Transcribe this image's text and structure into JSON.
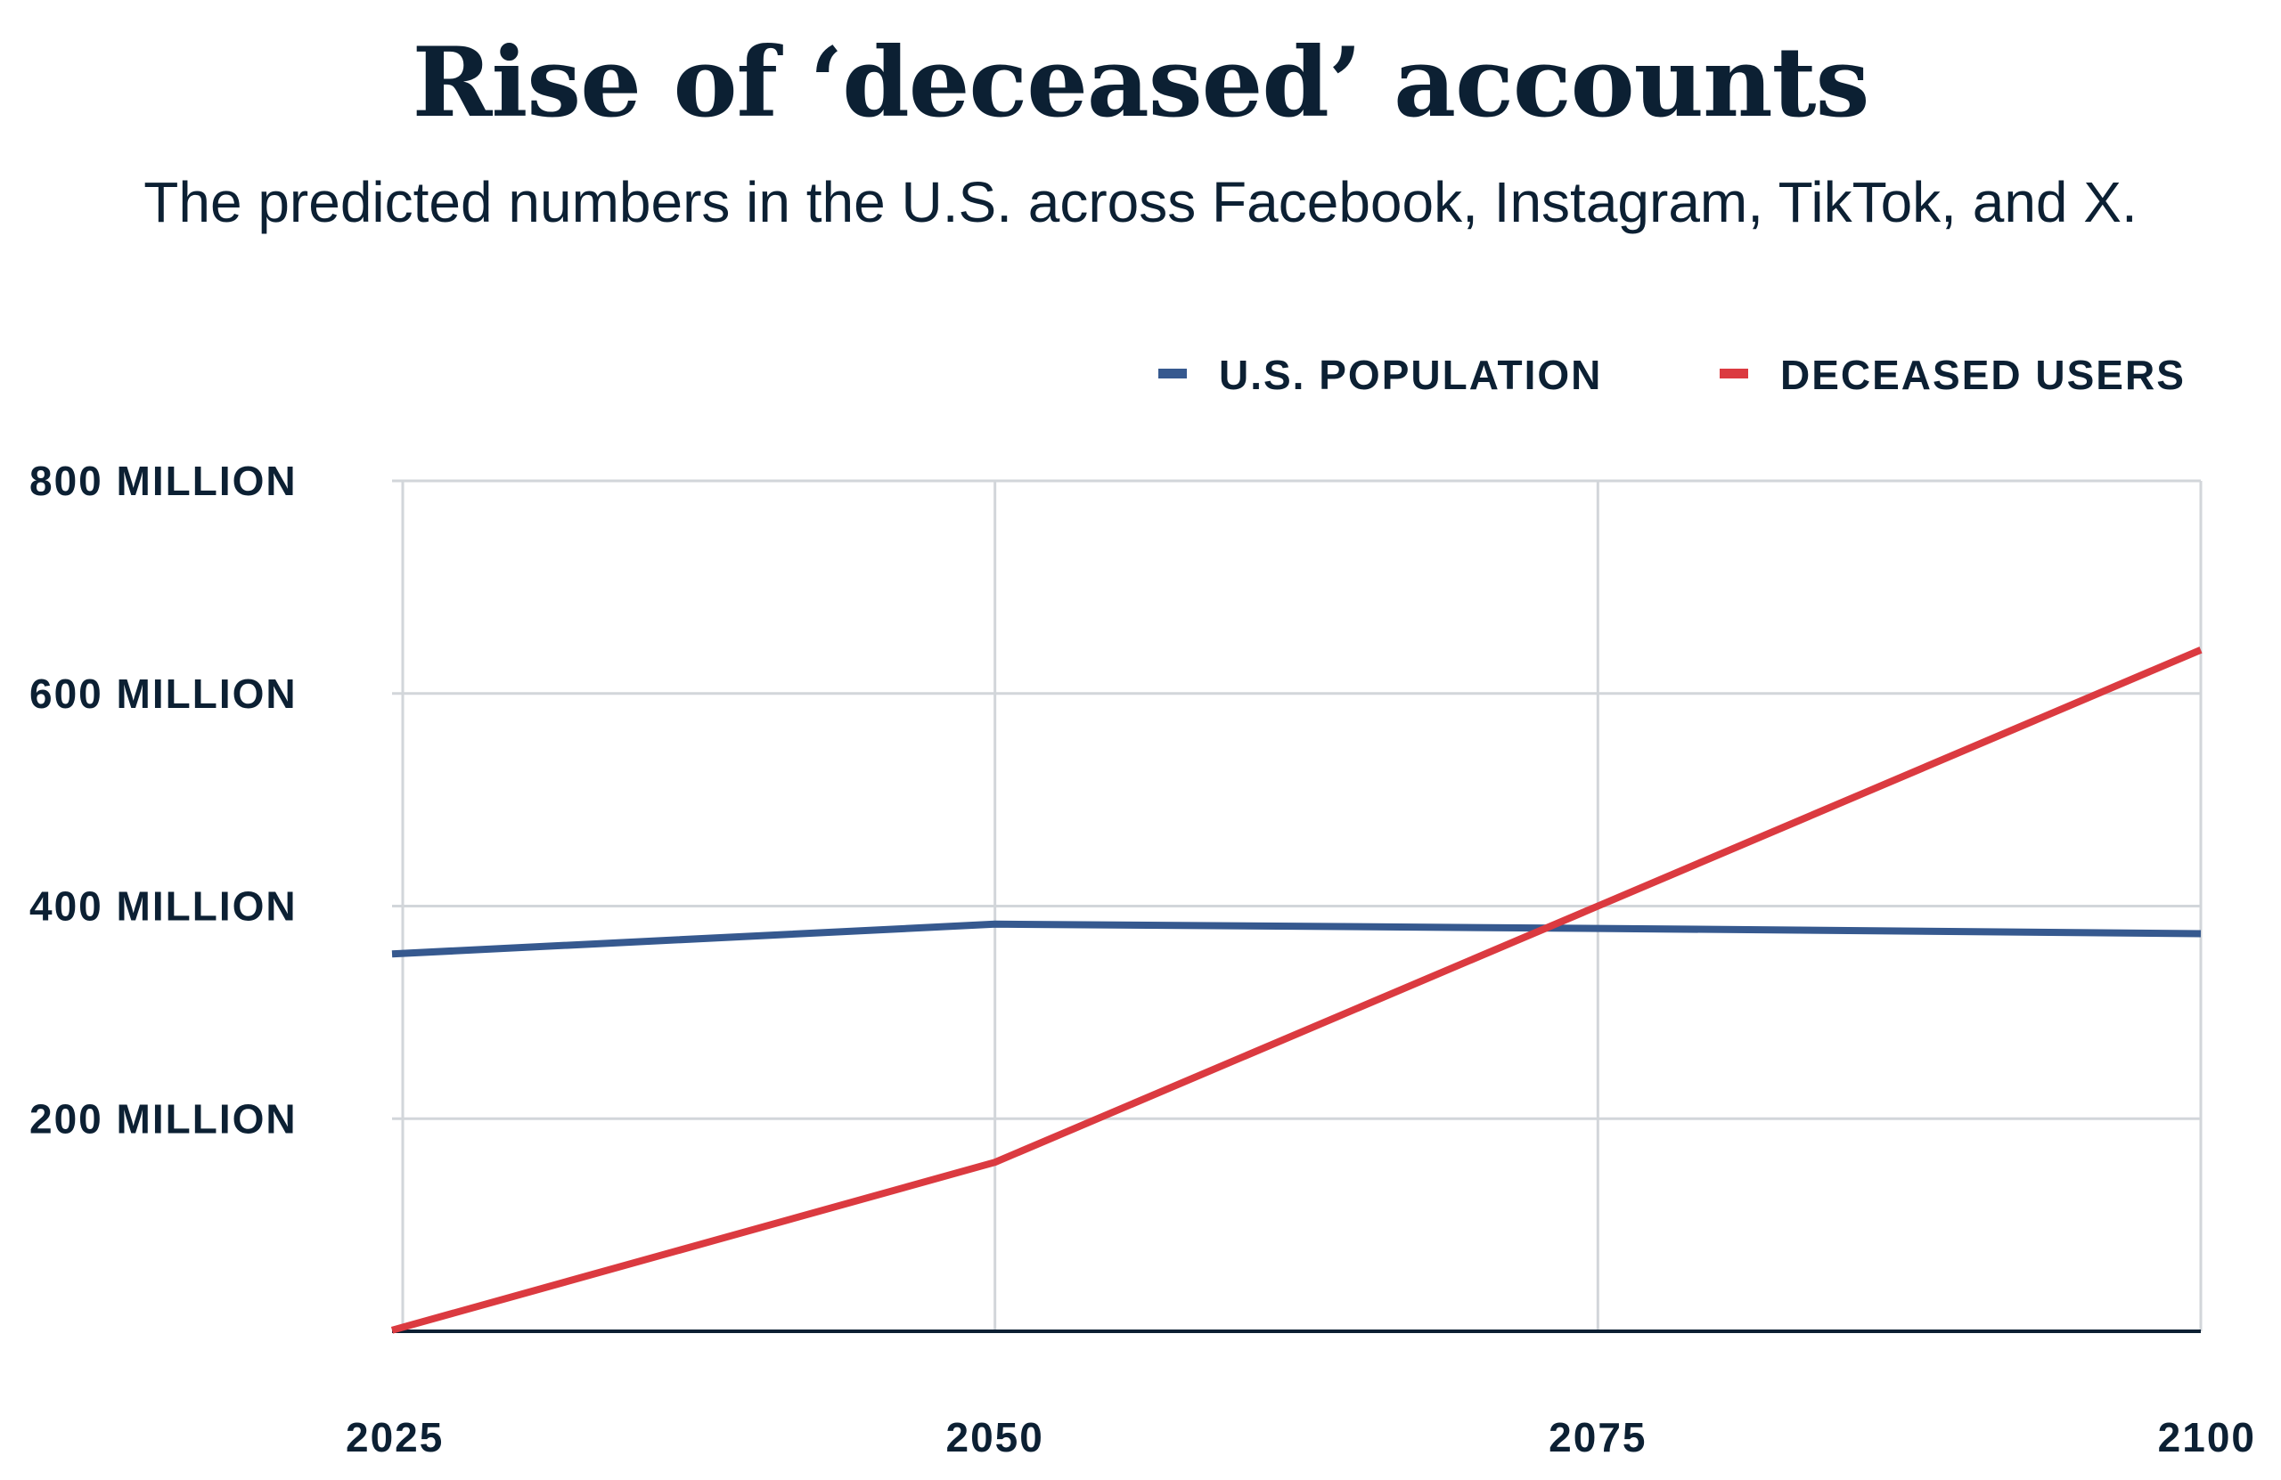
{
  "chart_data": {
    "type": "line",
    "title": "Rise of ‘deceased’ accounts",
    "subtitle": "The predicted numbers in the U.S. across Facebook, Instagram, TikTok, and X.",
    "x": [
      2025,
      2050,
      2075,
      2100
    ],
    "x_tick_labels": [
      "2025",
      "2050",
      "2075",
      "2100"
    ],
    "y_tick_labels": [
      "200 MILLION",
      "400 MILLION",
      "600 MILLION",
      "800 MILLION"
    ],
    "y_ticks": [
      200,
      400,
      600,
      800
    ],
    "ylim": [
      0,
      800
    ],
    "xlim": [
      2025,
      2100
    ],
    "grid": true,
    "legend_placement": "top-right",
    "series": [
      {
        "name": "U.S. POPULATION",
        "color": "#36598f",
        "values": [
          355,
          383,
          379,
          374
        ]
      },
      {
        "name": "DECEASED USERS",
        "color": "#db3a40",
        "values": [
          1,
          159,
          400,
          641
        ]
      }
    ]
  }
}
